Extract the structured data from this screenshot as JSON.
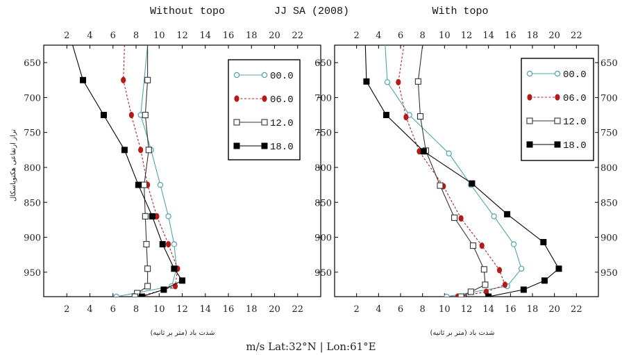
{
  "figure": {
    "header_left": "Without topo",
    "header_center": "JJ SA (2008)",
    "header_right": "With topo",
    "footer": "m/s  Lat:32°N  |  Lon:61°E",
    "ylabel": "تراز ارتفاعی هکتوپاسکال",
    "xlabel": "شدت باد (متر بر ثانیه)"
  },
  "chart_data": [
    {
      "type": "line",
      "title": "Without topo",
      "xlabel": "شدت باد (متر بر ثانیه)",
      "ylabel": "تراز ارتفاعی هکتوپاسکال",
      "xlim": [
        0,
        24
      ],
      "ylim": [
        625,
        985
      ],
      "y_inverted": true,
      "x_ticks": [
        2,
        4,
        6,
        8,
        10,
        12,
        14,
        16,
        18,
        20,
        22
      ],
      "y_ticks": [
        650,
        700,
        750,
        800,
        850,
        900,
        950
      ],
      "grid": false,
      "legend_position": "top-right",
      "series": [
        {
          "name": "00.0",
          "color": "#4fa3a8",
          "marker": "open-circle",
          "line": "solid",
          "points": [
            [
              9,
              625
            ],
            [
              8.4,
              725
            ],
            [
              9.3,
              775
            ],
            [
              10.1,
              825
            ],
            [
              10.8,
              870
            ],
            [
              11.3,
              910
            ],
            [
              11.5,
              945
            ],
            [
              11.1,
              970
            ],
            [
              6.3,
              985
            ]
          ]
        },
        {
          "name": "06.0",
          "color": "#b31b1b",
          "marker": "filled-circle",
          "line": "dashed",
          "points": [
            [
              7,
              625
            ],
            [
              6.9,
              675
            ],
            [
              7.6,
              725
            ],
            [
              8.4,
              775
            ],
            [
              9,
              825
            ],
            [
              9.8,
              870
            ],
            [
              10.8,
              910
            ],
            [
              11.6,
              945
            ],
            [
              11.4,
              970
            ],
            [
              8.3,
              985
            ]
          ]
        },
        {
          "name": "12.0",
          "color": "#333333",
          "marker": "open-square",
          "line": "solid",
          "points": [
            [
              9,
              625
            ],
            [
              9,
              675
            ],
            [
              8.8,
              725
            ],
            [
              9.1,
              775
            ],
            [
              8.7,
              825
            ],
            [
              8.8,
              870
            ],
            [
              8.9,
              910
            ],
            [
              9,
              945
            ],
            [
              9,
              970
            ],
            [
              8.1,
              980
            ],
            [
              7.9,
              985
            ]
          ]
        },
        {
          "name": "18.0",
          "color": "#000000",
          "marker": "filled-square",
          "line": "solid",
          "points": [
            [
              2.5,
              625
            ],
            [
              3.4,
              675
            ],
            [
              5.2,
              725
            ],
            [
              7,
              775
            ],
            [
              8.2,
              825
            ],
            [
              9.4,
              870
            ],
            [
              10.3,
              910
            ],
            [
              11.3,
              945
            ],
            [
              12,
              962
            ],
            [
              10.4,
              975
            ],
            [
              8.5,
              985
            ]
          ]
        }
      ]
    },
    {
      "type": "line",
      "title": "With topo",
      "xlabel": "شدت باد (متر بر ثانیه)",
      "ylabel": "",
      "xlim": [
        0,
        24
      ],
      "ylim": [
        625,
        985
      ],
      "y_inverted": true,
      "x_ticks": [
        2,
        4,
        6,
        8,
        10,
        12,
        14,
        16,
        18,
        20,
        22
      ],
      "y_ticks": [
        650,
        700,
        750,
        800,
        850,
        900,
        950
      ],
      "grid": false,
      "legend_position": "top-right",
      "series": [
        {
          "name": "00.0",
          "color": "#4fa3a8",
          "marker": "open-circle",
          "line": "solid",
          "points": [
            [
              4.6,
              625
            ],
            [
              4.8,
              678
            ],
            [
              6.8,
              725
            ],
            [
              10.4,
              780
            ],
            [
              12.4,
              825
            ],
            [
              14.5,
              870
            ],
            [
              16.3,
              910
            ],
            [
              17,
              945
            ],
            [
              15.7,
              970
            ],
            [
              10.2,
              985
            ]
          ]
        },
        {
          "name": "06.0",
          "color": "#b31b1b",
          "marker": "filled-circle",
          "line": "dashed",
          "points": [
            [
              6.3,
              625
            ],
            [
              5.8,
              678
            ],
            [
              6.5,
              728
            ],
            [
              7.7,
              777
            ],
            [
              9.9,
              827
            ],
            [
              11.5,
              873
            ],
            [
              13.4,
              912
            ],
            [
              15,
              947
            ],
            [
              15.5,
              968
            ],
            [
              13.8,
              978
            ],
            [
              11.2,
              985
            ]
          ]
        },
        {
          "name": "12.0",
          "color": "#333333",
          "marker": "open-square",
          "line": "solid",
          "points": [
            [
              8,
              625
            ],
            [
              7.6,
              677
            ],
            [
              7.8,
              727
            ],
            [
              8.3,
              776
            ],
            [
              9.6,
              826
            ],
            [
              10.9,
              872
            ],
            [
              12.6,
              912
            ],
            [
              13.6,
              946
            ],
            [
              13.7,
              968
            ],
            [
              12.4,
              978
            ],
            [
              11.5,
              985
            ]
          ]
        },
        {
          "name": "18.0",
          "color": "#000000",
          "marker": "filled-square",
          "line": "solid",
          "points": [
            [
              2.8,
              625
            ],
            [
              2.9,
              677
            ],
            [
              4.7,
              725
            ],
            [
              8.1,
              777
            ],
            [
              12.5,
              823
            ],
            [
              15.7,
              867
            ],
            [
              19,
              907
            ],
            [
              20.4,
              945
            ],
            [
              19.1,
              962
            ],
            [
              17.2,
              975
            ],
            [
              14,
              985
            ]
          ]
        }
      ]
    }
  ]
}
